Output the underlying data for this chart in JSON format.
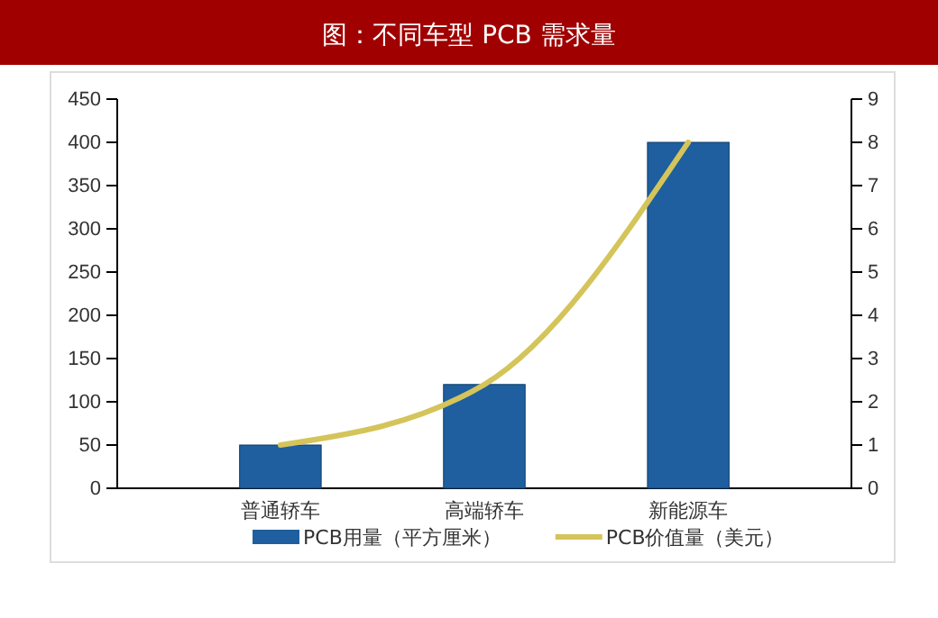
{
  "chart_data": {
    "type": "bar",
    "title": "图：不同车型 PCB 需求量",
    "categories": [
      "普通轿车",
      "高端轿车",
      "新能源车"
    ],
    "series": [
      {
        "name": "PCB用量（平方厘米）",
        "color": "#1f5f9f",
        "values": [
          50,
          120,
          400
        ]
      },
      {
        "name": "PCB价值量（美元）",
        "color": "#d4c45a",
        "type": "line",
        "axis": "y2",
        "values": [
          1,
          2.4,
          8
        ]
      }
    ],
    "ylim": [
      0,
      450
    ],
    "yticks": [
      0,
      50,
      100,
      150,
      200,
      250,
      300,
      350,
      400,
      450
    ],
    "y2lim": [
      0,
      9
    ],
    "y2ticks": [
      0,
      1,
      2,
      3,
      4,
      5,
      6,
      7,
      8,
      9
    ],
    "grid": false,
    "legend": "bottom",
    "marker": "none"
  }
}
